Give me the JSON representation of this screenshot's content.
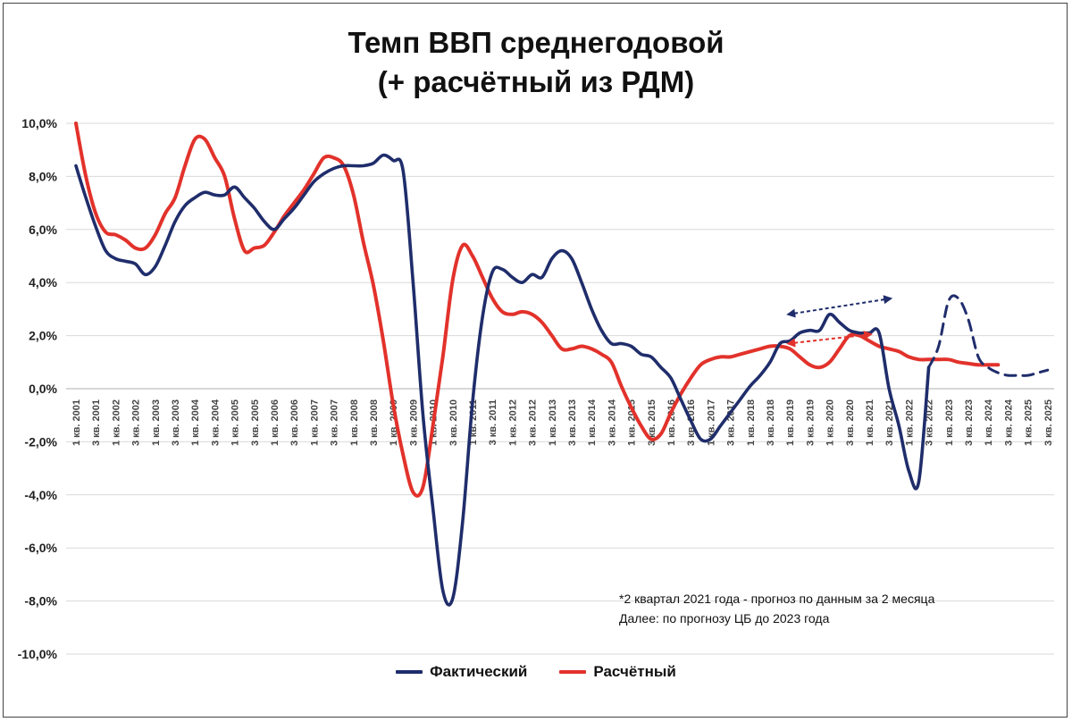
{
  "chart_title": {
    "line1": "Темп ВВП среднегодовой",
    "line2": "(+ расчётный из РДМ)"
  },
  "notes": {
    "line1": "*2 квартал 2021 года - прогноз по данным за 2 месяца",
    "line2": "Далее: по прогнозу ЦБ до 2023 года"
  },
  "legend": {
    "actual": "Фактический",
    "calculated": "Расчётный"
  },
  "colors": {
    "actual": "#1f2d6b",
    "calculated": "#e2322b",
    "grid": "#d9d9d9",
    "axis": "#bfbfbf"
  },
  "chart_data": {
    "type": "line",
    "x_tick_labels": [
      "1 кв. 2001",
      "3 кв. 2001",
      "1 кв. 2002",
      "3 кв. 2002",
      "1 кв. 2003",
      "3 кв. 2003",
      "1 кв. 2004",
      "3 кв. 2004",
      "1 кв. 2005",
      "3 кв. 2005",
      "1 кв. 2006",
      "3 кв. 2006",
      "1 кв. 2007",
      "3 кв. 2007",
      "1 кв. 2008",
      "3 кв. 2008",
      "1 кв. 2009",
      "3 кв. 2009",
      "1 кв. 2010",
      "3 кв. 2010",
      "1 кв. 2011",
      "3 кв. 2011",
      "1 кв. 2012",
      "3 кв. 2012",
      "1 кв. 2013",
      "3 кв. 2013",
      "1 кв. 2014",
      "3 кв. 2014",
      "1 кв. 2015",
      "3 кв. 2015",
      "1 кв. 2016",
      "3 кв. 2016",
      "1 кв. 2017",
      "3 кв. 2017",
      "1 кв. 2018",
      "3 кв. 2018",
      "1 кв. 2019",
      "3 кв. 2019",
      "1 кв. 2020",
      "3 кв. 2020",
      "1 кв. 2021",
      "3 кв. 2021",
      "1 кв. 2022",
      "3 кв. 2022",
      "1 кв. 2023",
      "3 кв. 2023",
      "1 кв. 2024",
      "3 кв. 2024",
      "1 кв. 2025",
      "3 кв. 2025"
    ],
    "y_tick_labels": [
      "10,0%",
      "8,0%",
      "6,0%",
      "4,0%",
      "2,0%",
      "0,0%",
      "-2,0%",
      "-4,0%",
      "-6,0%",
      "-8,0%",
      "-10,0%"
    ],
    "ylim": [
      -10,
      10
    ],
    "x_axis_crosses_at": 0,
    "grid": true,
    "legend_position": "bottom",
    "series": [
      {
        "name": "Фактический",
        "color": "#1f2d6b",
        "style": "solid",
        "values": [
          8.4,
          7.2,
          6.1,
          5.2,
          4.9,
          4.8,
          4.7,
          4.3,
          4.6,
          5.4,
          6.3,
          6.9,
          7.2,
          7.4,
          7.3,
          7.3,
          7.6,
          7.2,
          6.8,
          6.3,
          6.0,
          6.4,
          6.8,
          7.3,
          7.8,
          8.1,
          8.3,
          8.4,
          8.4,
          8.4,
          8.5,
          8.8,
          8.6,
          8.2,
          4.0,
          -1.0,
          -4.5,
          -7.6,
          -7.9,
          -5.0,
          -0.5,
          2.7,
          4.4,
          4.5,
          4.2,
          4.0,
          4.3,
          4.2,
          4.9,
          5.2,
          4.9,
          4.0,
          3.0,
          2.2,
          1.7,
          1.7,
          1.6,
          1.3,
          1.2,
          0.8,
          0.4,
          -0.4,
          -1.2,
          -1.9,
          -1.9,
          -1.4,
          -0.9,
          -0.4,
          0.1,
          0.5,
          1.0,
          1.7,
          1.8,
          2.1,
          2.2,
          2.2,
          2.8,
          2.5,
          2.2,
          2.1,
          2.1,
          2.1,
          0.0,
          -1.4,
          -3.1,
          -3.5,
          0.8
        ],
        "forecast": {
          "style": "dashed",
          "values": [
            1.6,
            3.3,
            3.4,
            2.6,
            1.2,
            0.8,
            0.6,
            0.5,
            0.5,
            0.5,
            0.6,
            0.7
          ]
        }
      },
      {
        "name": "Расчётный",
        "color": "#e2322b",
        "style": "solid",
        "values": [
          10.0,
          8.0,
          6.6,
          5.9,
          5.8,
          5.6,
          5.3,
          5.3,
          5.8,
          6.6,
          7.2,
          8.4,
          9.4,
          9.4,
          8.7,
          8.0,
          6.4,
          5.2,
          5.3,
          5.4,
          5.9,
          6.5,
          7.0,
          7.5,
          8.1,
          8.7,
          8.7,
          8.4,
          7.3,
          5.5,
          3.9,
          1.8,
          -0.6,
          -2.5,
          -3.9,
          -3.7,
          -1.4,
          1.2,
          4.1,
          5.4,
          5.0,
          4.2,
          3.4,
          2.9,
          2.8,
          2.9,
          2.8,
          2.5,
          2.0,
          1.5,
          1.5,
          1.6,
          1.5,
          1.3,
          1.0,
          0.1,
          -0.7,
          -1.4,
          -1.9,
          -1.7,
          -0.9,
          -0.2,
          0.4,
          0.9,
          1.1,
          1.2,
          1.2,
          1.3,
          1.4,
          1.5,
          1.6,
          1.6,
          1.5,
          1.2,
          0.9,
          0.8,
          1.0,
          1.5,
          2.0,
          2.0,
          1.8,
          1.6,
          1.5,
          1.4,
          1.2,
          1.1,
          1.1,
          1.1,
          1.1,
          1.0,
          0.95,
          0.9,
          0.9,
          0.9
        ]
      }
    ],
    "annotations": [
      {
        "type": "dashed-arrow",
        "color": "#1f2d6b",
        "from": {
          "x": "1 кв. 2019",
          "y": 2.8
        },
        "to": {
          "x": "3 кв. 2021",
          "y": 3.4
        }
      },
      {
        "type": "dashed-arrow",
        "color": "#e2322b",
        "from": {
          "x": "1 кв. 2019",
          "y": 1.7
        },
        "to": {
          "x": "1 кв. 2021",
          "y": 2.05
        }
      }
    ]
  }
}
